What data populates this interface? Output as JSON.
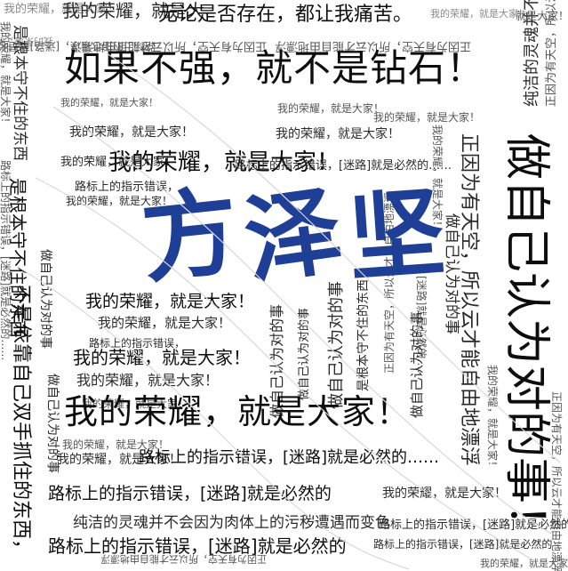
{
  "name_title": "方泽坚",
  "colors": {
    "name": "#1f3f96",
    "text": "#1a1a1a",
    "background": "#ffffff"
  },
  "phrases": {
    "glory": "我的荣耀，就是大家！",
    "glory_head": "我的荣耀，就是大家",
    "glory_short": "我的荣耀，就是大",
    "glory_tiny": "就是大家！",
    "pain": "无论是否存在，都让我痛苦。",
    "diamond": "如果不强，就不是钻石！",
    "roadsign": "路标上的指示错误，[迷路]就是必然的……",
    "roadsign_a": "路标上的指示错误，",
    "roadsign_b": "[迷路]就是必然的……",
    "roadsign_mid": "路标上的指示错误，[迷路]就是必然的",
    "soul": "纯洁的灵魂并不会因为肉体上的污秽遭遇而变色",
    "do_self": "做自己认为对的事",
    "do_self_full": "做自己认为对的事！",
    "grasp": "是根本守不住的东西",
    "rely": "不是依靠自己双手抓住的东西，",
    "sky": "正因为有天空，所以云才能自由地漂浮",
    "sky_short": "正因为有天空，"
  }
}
